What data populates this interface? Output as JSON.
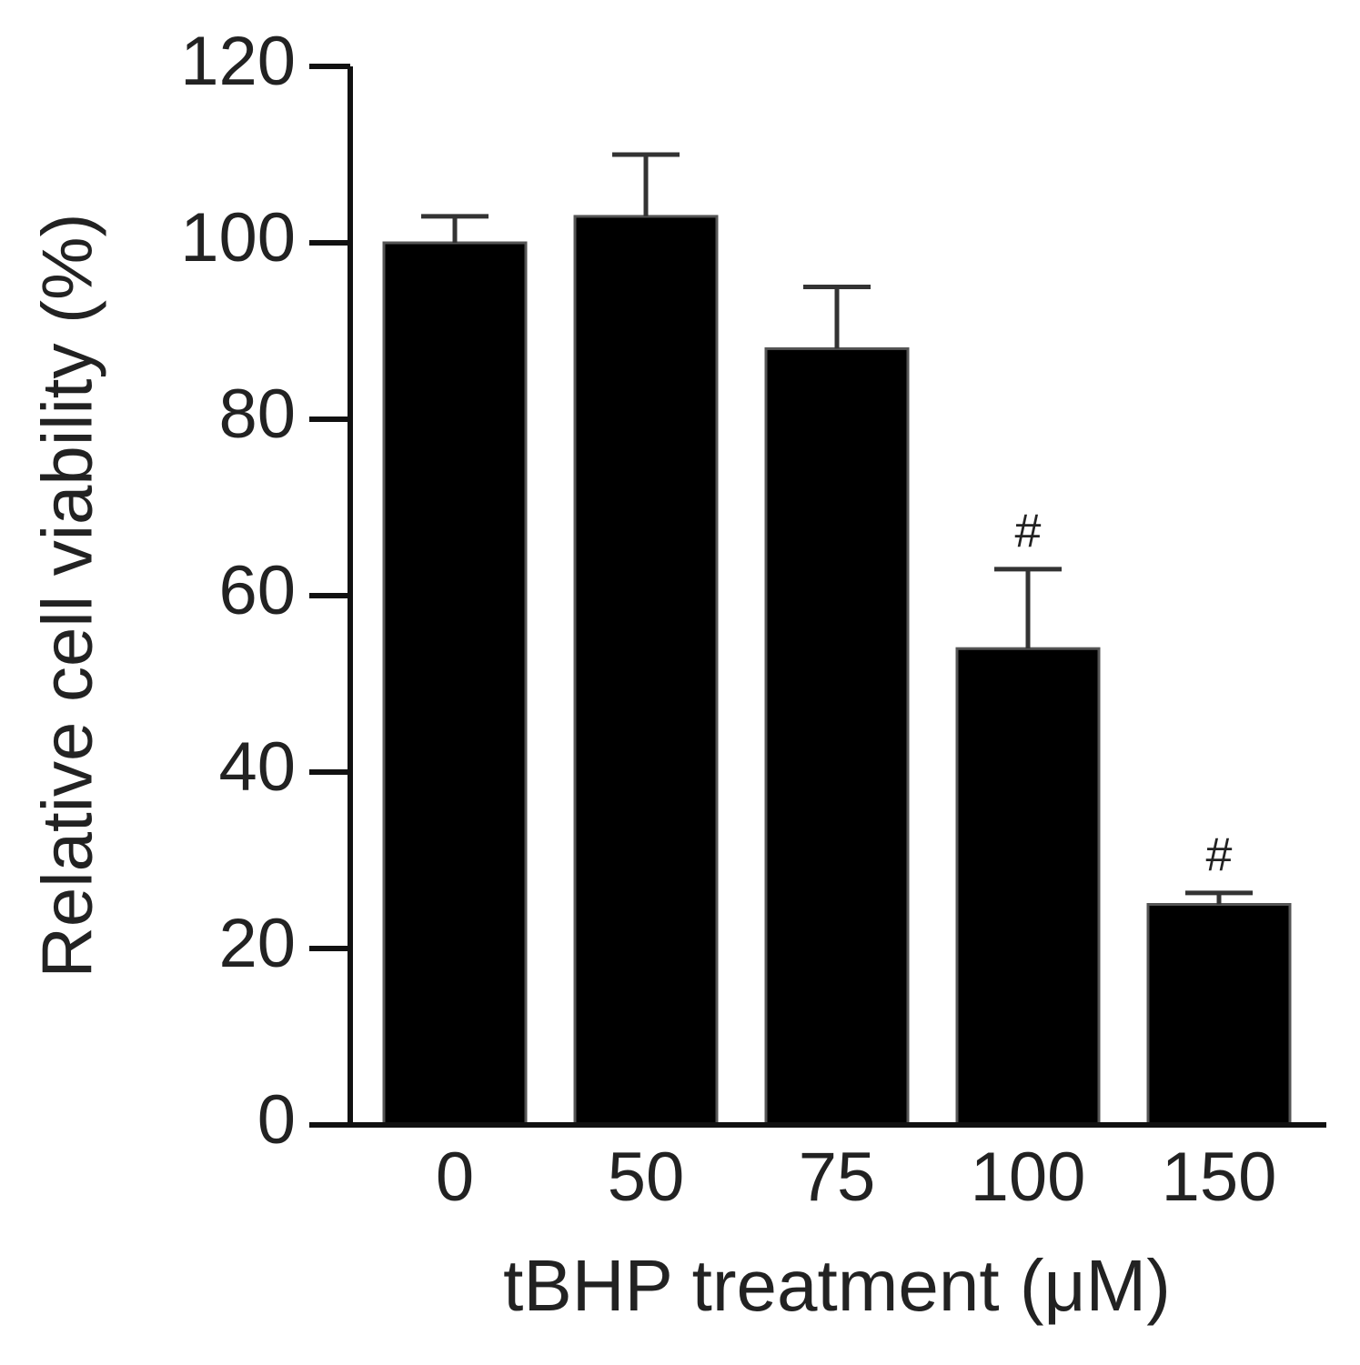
{
  "chart_data": {
    "type": "bar",
    "xlabel": "tBHP treatment (μM)",
    "ylabel": "Relative cell viability (%)",
    "categories": [
      "0",
      "50",
      "75",
      "100",
      "150"
    ],
    "values": [
      100,
      103,
      88,
      54,
      25
    ],
    "errors": [
      3,
      7,
      7,
      9,
      1.3
    ],
    "annotations": [
      null,
      null,
      null,
      "#",
      "#"
    ],
    "color": "#000000",
    "ylim": [
      0,
      120
    ],
    "yticks": [
      0,
      20,
      40,
      60,
      80,
      100,
      120
    ],
    "grid": false
  }
}
